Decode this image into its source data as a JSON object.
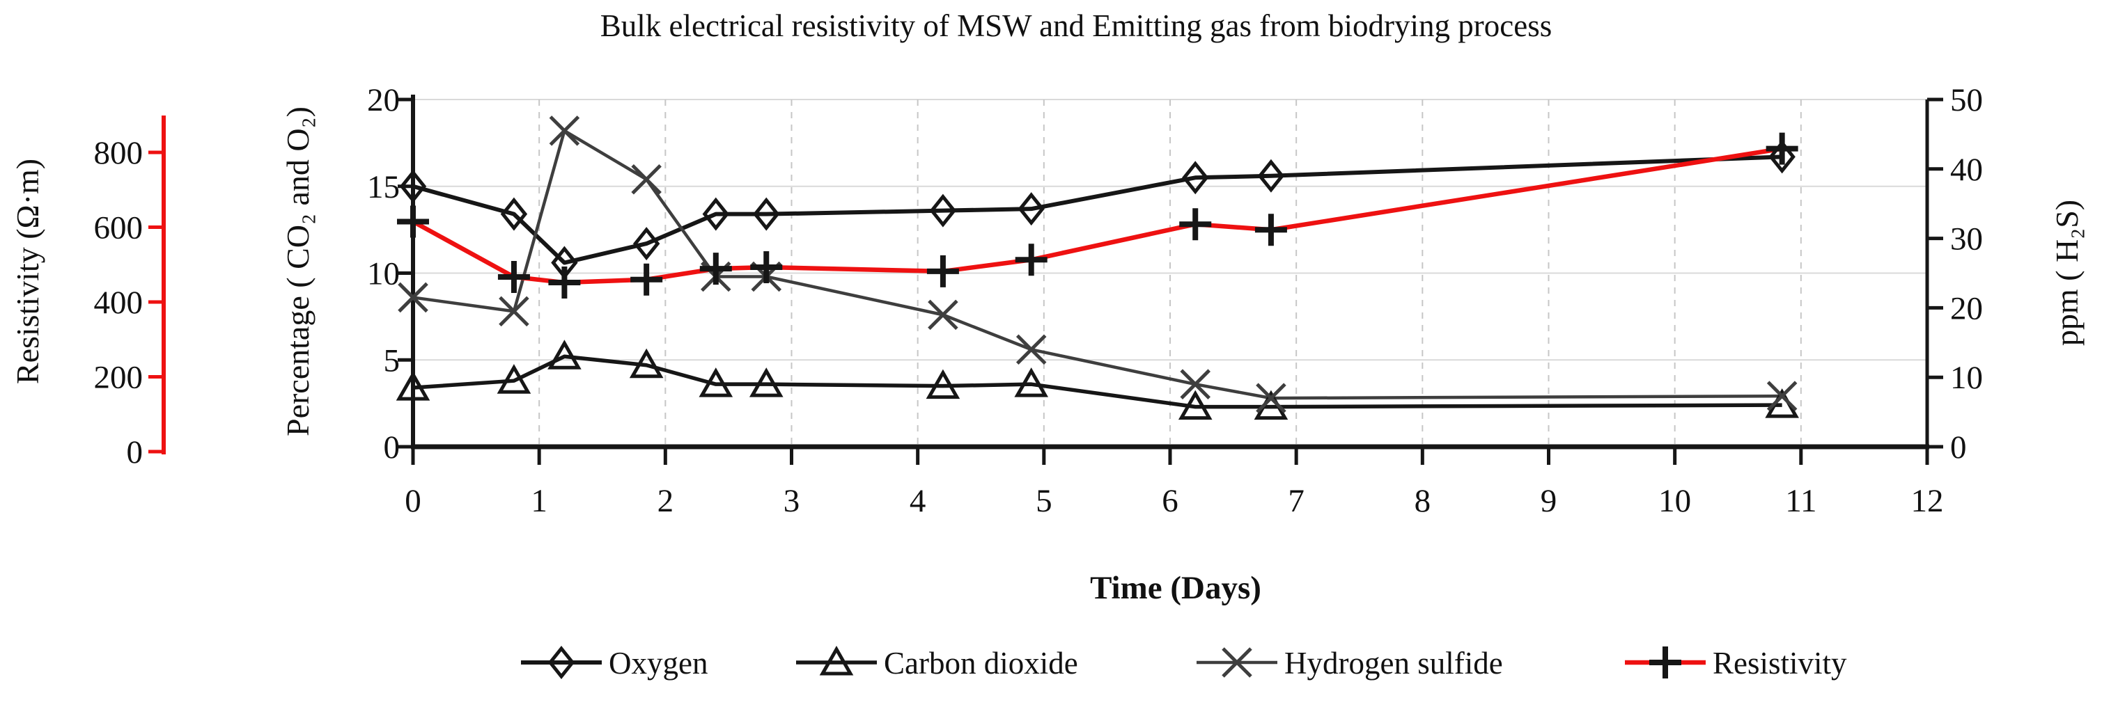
{
  "title": "Bulk electrical resistivity of MSW and Emitting gas from biodrying process",
  "chart_data": {
    "type": "line",
    "title": "Bulk electrical resistivity of MSW and Emitting gas from biodrying process",
    "xlabel": "Time (Days)",
    "x_axis": {
      "min": 0,
      "max": 12,
      "tick_labels": [
        "0",
        "1",
        "2",
        "3",
        "4",
        "5",
        "6",
        "7",
        "8",
        "9",
        "10",
        "11",
        "12"
      ]
    },
    "grid": {
      "horizontal": "solid",
      "vertical": "dashed"
    },
    "legend_position": "bottom",
    "axes": {
      "percentage": {
        "label": "Percentage ( CO₂ and O₂)",
        "min": 0,
        "max": 20,
        "ticks": [
          0,
          5,
          10,
          15,
          20
        ],
        "side": "left-inner",
        "color": "#161616"
      },
      "resistivity": {
        "label": "Resistivity (Ω·m)",
        "min": 0,
        "max": 800,
        "ticks": [
          0,
          200,
          400,
          600,
          800
        ],
        "side": "left-outer",
        "color": "#ee1111"
      },
      "ppm": {
        "label": "ppm ( H₂S)",
        "min": 0,
        "max": 50,
        "ticks": [
          0,
          10,
          20,
          30,
          40,
          50
        ],
        "side": "right",
        "color": "#161616"
      }
    },
    "x": [
      0,
      0.8,
      1.2,
      1.85,
      2.4,
      2.8,
      4.2,
      4.9,
      6.2,
      6.8,
      10.85
    ],
    "series": [
      {
        "name": "Oxygen",
        "axis": "percentage",
        "marker": "diamond",
        "line_color": "#161616",
        "marker_color": "#161616",
        "values": [
          15.0,
          13.4,
          10.6,
          11.7,
          13.4,
          13.4,
          13.6,
          13.7,
          15.5,
          15.6,
          16.7
        ]
      },
      {
        "name": "Carbon dioxide",
        "axis": "percentage",
        "marker": "triangle",
        "line_color": "#161616",
        "marker_color": "#161616",
        "values": [
          3.4,
          3.8,
          5.2,
          4.7,
          3.6,
          3.6,
          3.5,
          3.6,
          2.3,
          2.3,
          2.4
        ]
      },
      {
        "name": "Hydrogen sulfide",
        "axis": "ppm",
        "marker": "x",
        "line_color": "#3e3e3e",
        "marker_color": "#3e3e3e",
        "values": [
          21.5,
          19.5,
          45.5,
          38.5,
          24.5,
          24.5,
          19.0,
          14.0,
          9.0,
          7.0,
          7.3
        ]
      },
      {
        "name": "Resistivity",
        "axis": "resistivity",
        "marker": "plus",
        "line_color": "#ee1111",
        "marker_color": "#161616",
        "values": [
          615,
          467,
          452,
          460,
          489,
          493,
          482,
          513,
          608,
          593,
          810
        ]
      }
    ],
    "legend": [
      "Oxygen",
      "Carbon dioxide",
      "Hydrogen sulfide",
      "Resistivity"
    ]
  }
}
